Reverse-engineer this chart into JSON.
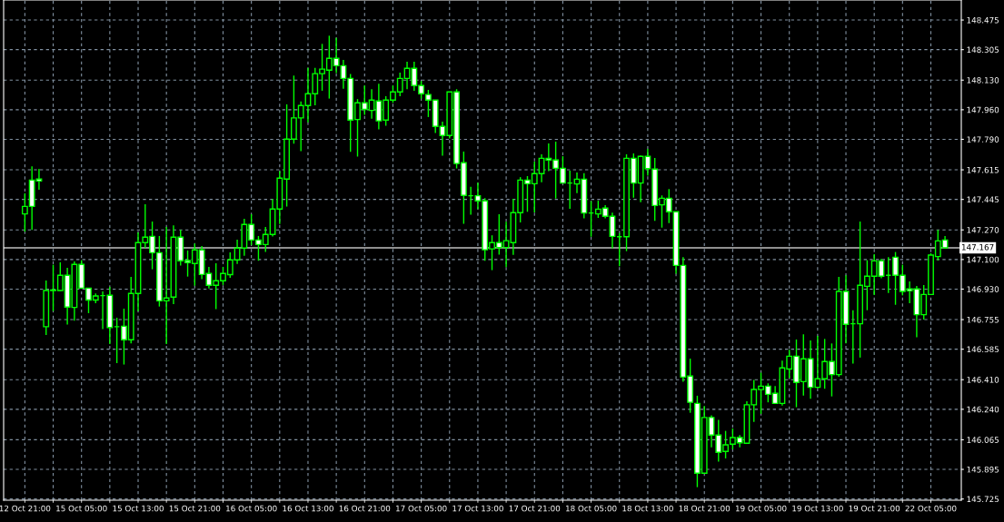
{
  "chart_data": {
    "type": "candlestick",
    "categories": [
      "12 Oct 21:00",
      null,
      null,
      null,
      null,
      null,
      null,
      null,
      "15 Oct 05:00",
      null,
      null,
      null,
      null,
      null,
      null,
      null,
      "15 Oct 13:00",
      null,
      null,
      null,
      null,
      null,
      null,
      null,
      "15 Oct 21:00",
      null,
      null,
      null,
      null,
      null,
      null,
      null,
      "16 Oct 05:00",
      null,
      null,
      null,
      null,
      null,
      null,
      null,
      "16 Oct 13:00",
      null,
      null,
      null,
      null,
      null,
      null,
      null,
      "16 Oct 21:00",
      null,
      null,
      null,
      null,
      null,
      null,
      null,
      "17 Oct 05:00",
      null,
      null,
      null,
      null,
      null,
      null,
      null,
      "17 Oct 13:00",
      null,
      null,
      null,
      null,
      null,
      null,
      null,
      "17 Oct 21:00",
      null,
      null,
      null,
      null,
      null,
      null,
      null,
      "18 Oct 05:00",
      null,
      null,
      null,
      null,
      null,
      null,
      null,
      "18 Oct 13:00",
      null,
      null,
      null,
      null,
      null,
      null,
      null,
      "18 Oct 21:00",
      null,
      null,
      null,
      null,
      null,
      null,
      null,
      "19 Oct 05:00",
      null,
      null,
      null,
      null,
      null,
      null,
      null,
      "19 Oct 13:00",
      null,
      null,
      null,
      null,
      null,
      null,
      null,
      "19 Oct 21:00",
      null,
      null,
      null,
      null,
      null,
      null,
      null,
      "22 Oct 05:00",
      null,
      null
    ],
    "color": "#00ff00",
    "ohlc": [
      [
        147.362,
        147.48,
        147.26,
        147.405
      ],
      [
        147.556,
        147.635,
        147.27,
        147.405
      ],
      [
        147.562,
        147.621,
        147.501,
        147.551
      ],
      [
        146.714,
        146.98,
        146.667,
        146.922
      ],
      [
        146.922,
        147.07,
        146.804,
        146.925
      ],
      [
        146.922,
        147.084,
        146.92,
        147.009
      ],
      [
        147.009,
        147.053,
        146.726,
        146.827
      ],
      [
        146.825,
        147.089,
        146.749,
        147.072
      ],
      [
        147.072,
        147.096,
        146.934,
        146.936
      ],
      [
        146.936,
        146.936,
        146.792,
        146.867
      ],
      [
        146.867,
        146.905,
        146.849,
        146.891
      ],
      [
        146.893,
        146.917,
        146.7,
        146.893
      ],
      [
        146.895,
        146.943,
        146.615,
        146.71
      ],
      [
        146.714,
        146.766,
        146.505,
        146.714
      ],
      [
        146.717,
        146.818,
        146.497,
        146.639
      ],
      [
        146.639,
        147.0,
        146.618,
        146.905
      ],
      [
        146.905,
        147.256,
        146.804,
        147.197
      ],
      [
        147.197,
        147.417,
        147.166,
        147.228
      ],
      [
        147.233,
        147.318,
        147.044,
        147.139
      ],
      [
        147.139,
        147.235,
        146.83,
        146.863
      ],
      [
        146.863,
        147.287,
        146.615,
        146.879
      ],
      [
        146.884,
        147.296,
        146.844,
        147.228
      ],
      [
        147.228,
        147.27,
        147.065,
        147.093
      ],
      [
        147.094,
        147.152,
        147.002,
        147.082
      ],
      [
        147.077,
        147.192,
        146.95,
        147.155
      ],
      [
        147.155,
        147.178,
        146.987,
        147.014
      ],
      [
        147.02,
        147.058,
        146.934,
        146.952
      ],
      [
        146.952,
        147.079,
        146.815,
        146.978
      ],
      [
        146.978,
        147.058,
        146.954,
        147.02
      ],
      [
        147.013,
        147.141,
        146.995,
        147.098
      ],
      [
        147.098,
        147.214,
        147.075,
        147.166
      ],
      [
        147.166,
        147.334,
        147.122,
        147.301
      ],
      [
        147.301,
        147.36,
        147.183,
        147.212
      ],
      [
        147.212,
        147.235,
        147.093,
        147.186
      ],
      [
        147.186,
        147.287,
        147.143,
        147.244
      ],
      [
        147.244,
        147.447,
        147.232,
        147.39
      ],
      [
        147.39,
        147.608,
        147.304,
        147.567
      ],
      [
        147.562,
        147.991,
        147.404,
        147.791
      ],
      [
        147.791,
        148.156,
        147.765,
        147.913
      ],
      [
        147.913,
        148.008,
        147.722,
        147.984
      ],
      [
        147.984,
        148.2,
        147.887,
        148.052
      ],
      [
        148.052,
        148.2,
        147.986,
        148.167
      ],
      [
        148.167,
        148.338,
        148.069,
        148.193
      ],
      [
        148.187,
        148.385,
        148.024,
        148.255
      ],
      [
        148.255,
        148.373,
        148.17,
        148.213
      ],
      [
        148.213,
        148.246,
        148.081,
        148.14
      ],
      [
        148.14,
        148.165,
        147.718,
        147.901
      ],
      [
        147.904,
        148.021,
        147.691,
        148.0
      ],
      [
        148.0,
        148.099,
        147.93,
        147.962
      ],
      [
        147.956,
        148.078,
        147.909,
        148.015
      ],
      [
        148.01,
        148.109,
        147.847,
        147.896
      ],
      [
        147.901,
        148.038,
        147.868,
        148.015
      ],
      [
        148.015,
        148.099,
        148.0,
        148.062
      ],
      [
        148.062,
        148.173,
        148.038,
        148.14
      ],
      [
        148.14,
        148.236,
        148.078,
        148.198
      ],
      [
        148.198,
        148.236,
        148.069,
        148.099
      ],
      [
        148.099,
        148.125,
        148.024,
        148.052
      ],
      [
        148.047,
        148.074,
        147.918,
        148.015
      ],
      [
        148.015,
        148.015,
        147.826,
        147.864
      ],
      [
        147.864,
        147.892,
        147.696,
        147.812
      ],
      [
        147.812,
        148.062,
        147.795,
        148.062
      ],
      [
        148.062,
        148.078,
        147.623,
        147.651
      ],
      [
        147.656,
        147.72,
        147.305,
        147.468
      ],
      [
        147.466,
        147.517,
        147.357,
        147.466
      ],
      [
        147.466,
        147.541,
        147.388,
        147.437
      ],
      [
        147.437,
        147.453,
        147.093,
        147.156
      ],
      [
        147.161,
        147.239,
        147.039,
        147.197
      ],
      [
        147.197,
        147.36,
        147.128,
        147.168
      ],
      [
        147.169,
        147.317,
        147.056,
        147.208
      ],
      [
        147.197,
        147.448,
        147.127,
        147.369
      ],
      [
        147.369,
        147.573,
        147.313,
        147.556
      ],
      [
        147.556,
        147.579,
        147.374,
        147.535
      ],
      [
        147.535,
        147.662,
        147.37,
        147.593
      ],
      [
        147.593,
        147.704,
        147.544,
        147.681
      ],
      [
        147.681,
        147.766,
        147.608,
        147.671
      ],
      [
        147.671,
        147.777,
        147.45,
        147.624
      ],
      [
        147.624,
        147.693,
        147.537,
        147.539
      ],
      [
        147.539,
        147.61,
        147.391,
        147.539
      ],
      [
        147.534,
        147.6,
        147.481,
        147.561
      ],
      [
        147.561,
        147.596,
        147.336,
        147.367
      ],
      [
        147.367,
        147.435,
        147.231,
        147.367
      ],
      [
        147.362,
        147.438,
        147.339,
        147.389
      ],
      [
        147.395,
        147.412,
        147.336,
        147.348
      ],
      [
        147.348,
        147.369,
        147.165,
        147.233
      ],
      [
        147.231,
        147.252,
        147.061,
        147.231
      ],
      [
        147.231,
        147.704,
        147.148,
        147.681
      ],
      [
        147.681,
        147.709,
        147.455,
        147.539
      ],
      [
        147.539,
        147.697,
        147.429,
        147.692
      ],
      [
        147.692,
        147.735,
        147.582,
        147.622
      ],
      [
        147.619,
        147.683,
        147.322,
        147.41
      ],
      [
        147.414,
        147.468,
        147.283,
        147.452
      ],
      [
        147.452,
        147.504,
        147.309,
        147.374
      ],
      [
        147.374,
        147.374,
        147.018,
        147.066
      ],
      [
        147.066,
        147.113,
        146.398,
        146.425
      ],
      [
        146.431,
        146.531,
        146.22,
        146.28
      ],
      [
        146.274,
        146.318,
        145.793,
        145.873
      ],
      [
        145.873,
        146.259,
        145.87,
        146.193
      ],
      [
        146.193,
        146.205,
        146.022,
        146.092
      ],
      [
        146.092,
        146.179,
        145.939,
        145.993
      ],
      [
        145.998,
        146.116,
        145.958,
        146.036
      ],
      [
        146.04,
        146.13,
        146.01,
        146.078
      ],
      [
        146.078,
        146.092,
        146.022,
        146.048
      ],
      [
        146.045,
        146.286,
        146.043,
        146.266
      ],
      [
        146.266,
        146.408,
        146.168,
        146.354
      ],
      [
        146.353,
        146.45,
        146.214,
        146.373
      ],
      [
        146.373,
        146.389,
        146.28,
        146.326
      ],
      [
        146.332,
        146.373,
        146.272,
        146.274
      ],
      [
        146.274,
        146.519,
        146.262,
        146.478
      ],
      [
        146.471,
        146.582,
        146.419,
        146.545
      ],
      [
        146.545,
        146.641,
        146.252,
        146.394
      ],
      [
        146.399,
        146.67,
        146.319,
        146.53
      ],
      [
        146.53,
        146.636,
        146.3,
        146.366
      ],
      [
        146.366,
        146.662,
        146.361,
        146.415
      ],
      [
        146.415,
        146.644,
        146.358,
        146.514
      ],
      [
        146.514,
        146.618,
        146.314,
        146.439
      ],
      [
        146.439,
        147.0,
        146.427,
        146.917
      ],
      [
        146.917,
        147.009,
        146.618,
        146.728
      ],
      [
        146.731,
        146.809,
        146.502,
        146.731
      ],
      [
        146.731,
        147.318,
        146.537,
        146.952
      ],
      [
        146.946,
        147.096,
        146.809,
        147.004
      ],
      [
        147.004,
        147.131,
        146.896,
        147.092
      ],
      [
        147.092,
        147.104,
        146.992,
        147.004
      ],
      [
        147.009,
        147.113,
        146.908,
        147.009
      ],
      [
        147.113,
        147.143,
        146.84,
        147.009
      ],
      [
        147.009,
        147.07,
        146.894,
        146.917
      ],
      [
        146.931,
        146.974,
        146.849,
        146.92
      ],
      [
        146.931,
        146.948,
        146.653,
        146.783
      ],
      [
        146.783,
        146.953,
        146.755,
        146.899
      ],
      [
        146.899,
        147.136,
        146.897,
        147.125
      ],
      [
        147.117,
        147.27,
        147.096,
        147.207
      ],
      [
        147.212,
        147.235,
        147.165,
        147.167
      ]
    ],
    "ylim": [
      145.718,
      148.59
    ],
    "yticks": [
      145.725,
      145.895,
      146.065,
      {
        "value": 146.24,
        "label": "146.240"
      },
      {
        "value": 146.41,
        "label": "146.410"
      },
      146.585,
      146.755,
      {
        "value": 146.93,
        "label": "146.930"
      },
      {
        "value": 147.1,
        "label": "147.100"
      },
      {
        "value": 147.27,
        "label": "147.270"
      },
      147.445,
      147.615,
      {
        "value": 147.79,
        "label": "147.790"
      },
      {
        "value": 147.96,
        "label": "147.960"
      },
      {
        "value": 148.13,
        "label": "148.130"
      },
      148.305,
      148.475
    ],
    "ref_lines": [
      {
        "axis": "y",
        "value": 147.167,
        "label": "147.167",
        "color": "#c0c0c0"
      }
    ],
    "grid": true
  }
}
